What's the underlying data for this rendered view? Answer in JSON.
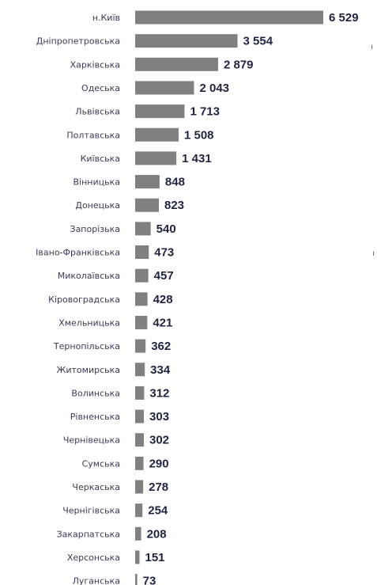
{
  "chart_data": {
    "type": "bar",
    "orientation": "horizontal",
    "categories": [
      "н.Київ",
      "Дніпропетровська",
      "Харківська",
      "Одеська",
      "Львівська",
      "Полтавська",
      "Київська",
      "Вінницька",
      "Донецька",
      "Запорізька",
      "Івано-Франківська",
      "Миколаївська",
      "Кіровоградська",
      "Хмельницька",
      "Тернопільська",
      "Житомирська",
      "Волинська",
      "Рівненська",
      "Чернівецька",
      "Сумська",
      "Черкаська",
      "Чернігівська",
      "Закарпатська",
      "Херсонська",
      "Луганська"
    ],
    "values": [
      6529,
      3554,
      2879,
      2043,
      1713,
      1508,
      1431,
      848,
      823,
      540,
      473,
      457,
      428,
      421,
      362,
      334,
      312,
      303,
      302,
      290,
      278,
      254,
      208,
      151,
      73
    ],
    "value_labels": [
      "6 529",
      "3 554",
      "2 879",
      "2 043",
      "1 713",
      "1 508",
      "1 431",
      "848",
      "823",
      "540",
      "473",
      "457",
      "428",
      "421",
      "362",
      "334",
      "312",
      "303",
      "302",
      "290",
      "278",
      "254",
      "208",
      "151",
      "73"
    ],
    "bar_color": "#808080",
    "grid": false,
    "legend": "none"
  }
}
